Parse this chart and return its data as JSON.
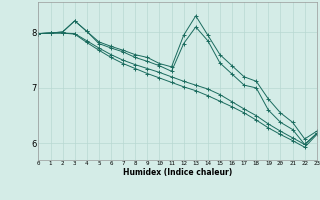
{
  "xlabel": "Humidex (Indice chaleur)",
  "ylabel": "",
  "bg_color": "#d4ece7",
  "grid_color": "#b8d8d2",
  "line_color": "#1a6b5e",
  "marker": "+",
  "xmin": 0,
  "xmax": 23,
  "ymin": 5.7,
  "ymax": 8.55,
  "yticks": [
    6,
    7,
    8
  ],
  "xticks": [
    0,
    1,
    2,
    3,
    4,
    5,
    6,
    7,
    8,
    9,
    10,
    11,
    12,
    13,
    14,
    15,
    16,
    17,
    18,
    19,
    20,
    21,
    22,
    23
  ],
  "series": [
    [
      7.98,
      7.99,
      8.01,
      8.21,
      8.02,
      7.83,
      7.75,
      7.68,
      7.6,
      7.55,
      7.44,
      7.38,
      7.95,
      8.3,
      7.95,
      7.6,
      7.4,
      7.2,
      7.12,
      6.8,
      6.55,
      6.38,
      6.08,
      6.22
    ],
    [
      7.98,
      7.99,
      8.01,
      8.21,
      8.02,
      7.8,
      7.72,
      7.65,
      7.55,
      7.48,
      7.4,
      7.3,
      7.8,
      8.1,
      7.85,
      7.45,
      7.25,
      7.05,
      7.0,
      6.6,
      6.38,
      6.25,
      5.98,
      6.18
    ],
    [
      7.98,
      7.99,
      7.99,
      7.98,
      7.85,
      7.72,
      7.6,
      7.5,
      7.42,
      7.35,
      7.28,
      7.2,
      7.12,
      7.05,
      6.98,
      6.88,
      6.75,
      6.62,
      6.5,
      6.35,
      6.22,
      6.1,
      5.98,
      6.18
    ],
    [
      7.98,
      7.99,
      7.99,
      7.97,
      7.82,
      7.68,
      7.55,
      7.44,
      7.35,
      7.26,
      7.18,
      7.1,
      7.02,
      6.95,
      6.86,
      6.76,
      6.66,
      6.55,
      6.42,
      6.28,
      6.16,
      6.05,
      5.93,
      6.16
    ]
  ],
  "xlabel_fontsize": 5.5,
  "ylabel_fontsize": 6,
  "xtick_fontsize": 4.2,
  "ytick_fontsize": 6
}
